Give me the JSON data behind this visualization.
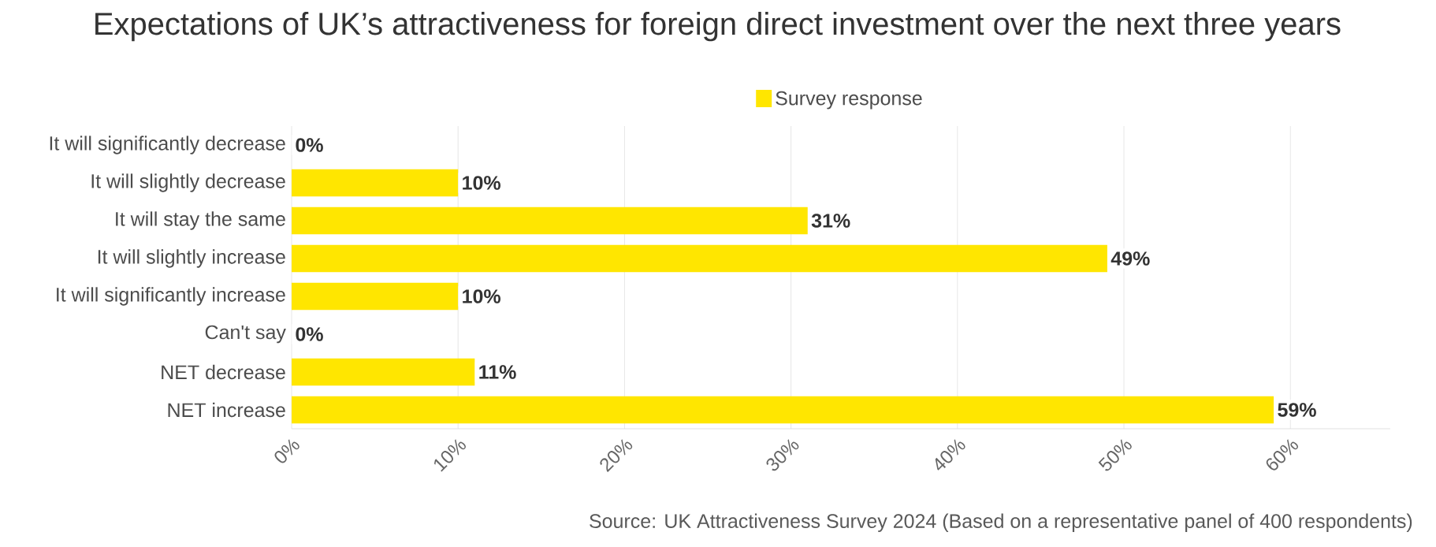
{
  "chart_data": {
    "type": "bar",
    "orientation": "horizontal",
    "title": "Expectations of UK’s attractiveness for foreign direct investment over the next three years",
    "categories": [
      "It will significantly decrease",
      "It will slightly decrease",
      "It will stay the same",
      "It will slightly increase",
      "It will significantly increase",
      "Can't say",
      "NET decrease",
      "NET increase"
    ],
    "series": [
      {
        "name": "Survey response",
        "color": "#ffe600",
        "values": [
          0,
          10,
          31,
          49,
          10,
          0,
          11,
          59
        ],
        "value_labels": [
          "0%",
          "10%",
          "31%",
          "49%",
          "10%",
          "0%",
          "11%",
          "59%"
        ]
      }
    ],
    "xlim": [
      0,
      66
    ],
    "xticks": [
      {
        "value": 0,
        "label": "0%"
      },
      {
        "value": 10,
        "label": "10%"
      },
      {
        "value": 20,
        "label": "20%"
      },
      {
        "value": 30,
        "label": "30%"
      },
      {
        "value": 40,
        "label": "40%"
      },
      {
        "value": 50,
        "label": "50%"
      },
      {
        "value": 60,
        "label": "60%"
      }
    ],
    "grid": "x",
    "legend": "top",
    "annotations": [
      "Source: UK Attractiveness Survey 2024 (Based on a representative panel of 400 respondents)"
    ]
  }
}
